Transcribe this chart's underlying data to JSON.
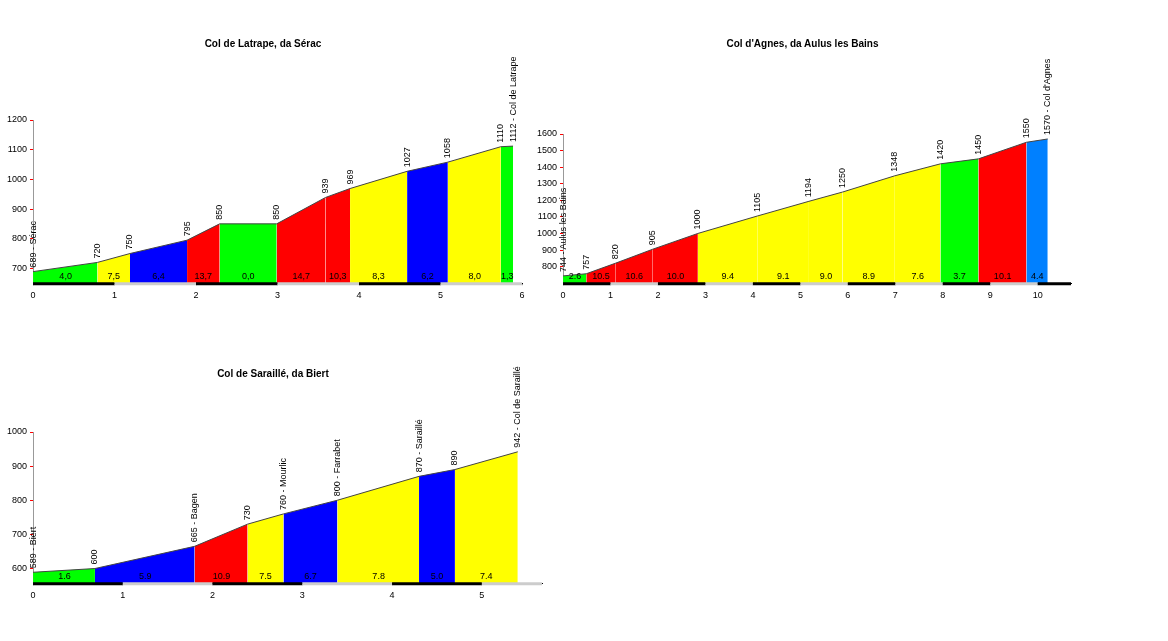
{
  "chart_data": [
    {
      "type": "area",
      "title": "Col de Latrape, da Sérac",
      "xlim": [
        0,
        6
      ],
      "xticks": [
        0,
        1,
        2,
        3,
        4,
        5,
        6
      ],
      "ylim": [
        650,
        1200
      ],
      "yticks": [
        700,
        800,
        900,
        1000,
        1100,
        1200
      ],
      "grid": false,
      "legend": false,
      "series": [
        {
          "color": "#00ff00",
          "x": [
            0,
            0.79
          ],
          "values": [
            689,
            720
          ],
          "value_labels": [
            "689 - Sérac",
            "720"
          ]
        },
        {
          "color": "#ffff00",
          "x": [
            0.79,
            1.19
          ],
          "values": [
            720,
            750
          ],
          "value_labels": [
            null,
            "750"
          ]
        },
        {
          "color": "#0000ff",
          "x": [
            1.19,
            1.89
          ],
          "values": [
            750,
            795
          ],
          "value_labels": [
            null,
            "795"
          ]
        },
        {
          "color": "#ff0000",
          "x": [
            1.89,
            2.29
          ],
          "values": [
            795,
            850
          ],
          "value_labels": [
            null,
            "850"
          ]
        },
        {
          "color": "#00ff00",
          "x": [
            2.29,
            2.99
          ],
          "values": [
            850,
            850
          ],
          "value_labels": [
            null,
            "850"
          ]
        },
        {
          "color": "#ff0000",
          "x": [
            2.99,
            3.59
          ],
          "values": [
            850,
            939
          ],
          "value_labels": [
            null,
            "939"
          ]
        },
        {
          "color": "#ff0000",
          "x": [
            3.59,
            3.89
          ],
          "values": [
            939,
            969
          ],
          "value_labels": [
            null,
            "969"
          ]
        },
        {
          "color": "#ffff00",
          "x": [
            3.89,
            4.59
          ],
          "values": [
            969,
            1027
          ],
          "value_labels": [
            null,
            "1027"
          ]
        },
        {
          "color": "#0000ff",
          "x": [
            4.59,
            5.09
          ],
          "values": [
            1027,
            1058
          ],
          "value_labels": [
            null,
            "1058"
          ]
        },
        {
          "color": "#ffff00",
          "x": [
            5.09,
            5.74
          ],
          "values": [
            1058,
            1110
          ],
          "value_labels": [
            null,
            "1110"
          ]
        },
        {
          "color": "#00ff00",
          "x": [
            5.74,
            5.89
          ],
          "values": [
            1110,
            1112
          ],
          "value_labels": [
            null,
            "1112 - Col de Latrape"
          ]
        }
      ],
      "annotations": [
        {
          "text": "4,0",
          "x": 0.4,
          "y": 650
        },
        {
          "text": "7,5",
          "x": 0.99,
          "y": 650
        },
        {
          "text": "6,4",
          "x": 1.54,
          "y": 650
        },
        {
          "text": "13,7",
          "x": 2.09,
          "y": 650
        },
        {
          "text": "0,0",
          "x": 2.64,
          "y": 650
        },
        {
          "text": "14,7",
          "x": 3.29,
          "y": 650
        },
        {
          "text": "10,3",
          "x": 3.74,
          "y": 650
        },
        {
          "text": "8,3",
          "x": 4.24,
          "y": 650
        },
        {
          "text": "6,2",
          "x": 4.84,
          "y": 650
        },
        {
          "text": "8,0",
          "x": 5.42,
          "y": 650
        },
        {
          "text": "1,3",
          "x": 5.82,
          "y": 650
        }
      ]
    },
    {
      "type": "area",
      "title": "Col d'Agnes, da Aulus les Bains",
      "xlim": [
        0,
        10.7
      ],
      "xticks": [
        0,
        1,
        2,
        3,
        4,
        5,
        6,
        7,
        8,
        9,
        10
      ],
      "ylim": [
        700,
        1600
      ],
      "yticks": [
        800,
        900,
        1000,
        1100,
        1200,
        1300,
        1400,
        1500,
        1600
      ],
      "grid": false,
      "legend": false,
      "series": [
        {
          "color": "#00ff00",
          "x": [
            0,
            0.49
          ],
          "values": [
            744,
            757
          ],
          "value_labels": [
            "744 - Aulus les Bains",
            "757"
          ]
        },
        {
          "color": "#ff0000",
          "x": [
            0.49,
            1.1
          ],
          "values": [
            757,
            820
          ],
          "value_labels": [
            null,
            "820"
          ]
        },
        {
          "color": "#ff0000",
          "x": [
            1.1,
            1.89
          ],
          "values": [
            820,
            905
          ],
          "value_labels": [
            null,
            "905"
          ]
        },
        {
          "color": "#ff0000",
          "x": [
            1.89,
            2.84
          ],
          "values": [
            905,
            1000
          ],
          "value_labels": [
            null,
            "1000"
          ]
        },
        {
          "color": "#ffff00",
          "x": [
            2.84,
            4.09
          ],
          "values": [
            1000,
            1105
          ],
          "value_labels": [
            null,
            "1105"
          ]
        },
        {
          "color": "#ffff00",
          "x": [
            4.09,
            5.18
          ],
          "values": [
            1105,
            1194
          ],
          "value_labels": [
            null,
            "1194"
          ]
        },
        {
          "color": "#ffff00",
          "x": [
            5.18,
            5.89
          ],
          "values": [
            1194,
            1250
          ],
          "value_labels": [
            null,
            "1250"
          ]
        },
        {
          "color": "#ffff00",
          "x": [
            5.89,
            6.99
          ],
          "values": [
            1250,
            1348
          ],
          "value_labels": [
            null,
            "1348"
          ]
        },
        {
          "color": "#ffff00",
          "x": [
            6.99,
            7.95
          ],
          "values": [
            1348,
            1420
          ],
          "value_labels": [
            null,
            "1420"
          ]
        },
        {
          "color": "#00ff00",
          "x": [
            7.95,
            8.75
          ],
          "values": [
            1420,
            1450
          ],
          "value_labels": [
            null,
            "1450"
          ]
        },
        {
          "color": "#ff0000",
          "x": [
            8.75,
            9.76
          ],
          "values": [
            1450,
            1550
          ],
          "value_labels": [
            null,
            "1550"
          ]
        },
        {
          "color": "#0080ff",
          "x": [
            9.76,
            10.21
          ],
          "values": [
            1550,
            1570
          ],
          "value_labels": [
            null,
            "1570 - Col d'Agnes"
          ]
        }
      ],
      "annotations": [
        {
          "text": "2.6",
          "x": 0.25,
          "y": 700
        },
        {
          "text": "10.5",
          "x": 0.8,
          "y": 700
        },
        {
          "text": "10.6",
          "x": 1.5,
          "y": 700
        },
        {
          "text": "10.0",
          "x": 2.37,
          "y": 700
        },
        {
          "text": "9.4",
          "x": 3.47,
          "y": 700
        },
        {
          "text": "9.1",
          "x": 4.64,
          "y": 700
        },
        {
          "text": "9.0",
          "x": 5.54,
          "y": 700
        },
        {
          "text": "8.9",
          "x": 6.44,
          "y": 700
        },
        {
          "text": "7.6",
          "x": 7.47,
          "y": 700
        },
        {
          "text": "3.7",
          "x": 8.35,
          "y": 700
        },
        {
          "text": "10.1",
          "x": 9.26,
          "y": 700
        },
        {
          "text": "4.4",
          "x": 9.99,
          "y": 700
        }
      ]
    },
    {
      "type": "area",
      "title": "Col de Saraillé, da Biert",
      "xlim": [
        0,
        5.67
      ],
      "xticks": [
        0,
        1,
        2,
        3,
        4,
        5
      ],
      "ylim": [
        557,
        1000
      ],
      "yticks": [
        600,
        700,
        800,
        900,
        1000
      ],
      "grid": false,
      "legend": false,
      "series": [
        {
          "color": "#00ff00",
          "x": [
            0,
            0.69
          ],
          "values": [
            589,
            600
          ],
          "value_labels": [
            "589 - Biert",
            "600"
          ]
        },
        {
          "color": "#0000ff",
          "x": [
            0.69,
            1.8
          ],
          "values": [
            600,
            665
          ],
          "value_labels": [
            null,
            "665 - Bagen"
          ]
        },
        {
          "color": "#ff0000",
          "x": [
            1.8,
            2.39
          ],
          "values": [
            665,
            730
          ],
          "value_labels": [
            null,
            "730"
          ]
        },
        {
          "color": "#ffff00",
          "x": [
            2.39,
            2.79
          ],
          "values": [
            730,
            760
          ],
          "value_labels": [
            null,
            "760 - Mourlic"
          ]
        },
        {
          "color": "#0000ff",
          "x": [
            2.79,
            3.39
          ],
          "values": [
            760,
            800
          ],
          "value_labels": [
            null,
            "800 - Farrabet"
          ]
        },
        {
          "color": "#ffff00",
          "x": [
            3.39,
            4.3
          ],
          "values": [
            800,
            870
          ],
          "value_labels": [
            null,
            "870 - Saraillé"
          ]
        },
        {
          "color": "#0000ff",
          "x": [
            4.3,
            4.7
          ],
          "values": [
            870,
            890
          ],
          "value_labels": [
            null,
            "890"
          ]
        },
        {
          "color": "#ffff00",
          "x": [
            4.7,
            5.4
          ],
          "values": [
            890,
            942
          ],
          "value_labels": [
            null,
            "942 - Col de Saraillé"
          ]
        }
      ],
      "annotations": [
        {
          "text": "1.6",
          "x": 0.35,
          "y": 557
        },
        {
          "text": "5.9",
          "x": 1.25,
          "y": 557
        },
        {
          "text": "10.9",
          "x": 2.1,
          "y": 557
        },
        {
          "text": "7.5",
          "x": 2.59,
          "y": 557
        },
        {
          "text": "6.7",
          "x": 3.09,
          "y": 557
        },
        {
          "text": "7.8",
          "x": 3.85,
          "y": 557
        },
        {
          "text": "5.0",
          "x": 4.5,
          "y": 557
        },
        {
          "text": "7.4",
          "x": 5.05,
          "y": 557
        }
      ]
    }
  ]
}
